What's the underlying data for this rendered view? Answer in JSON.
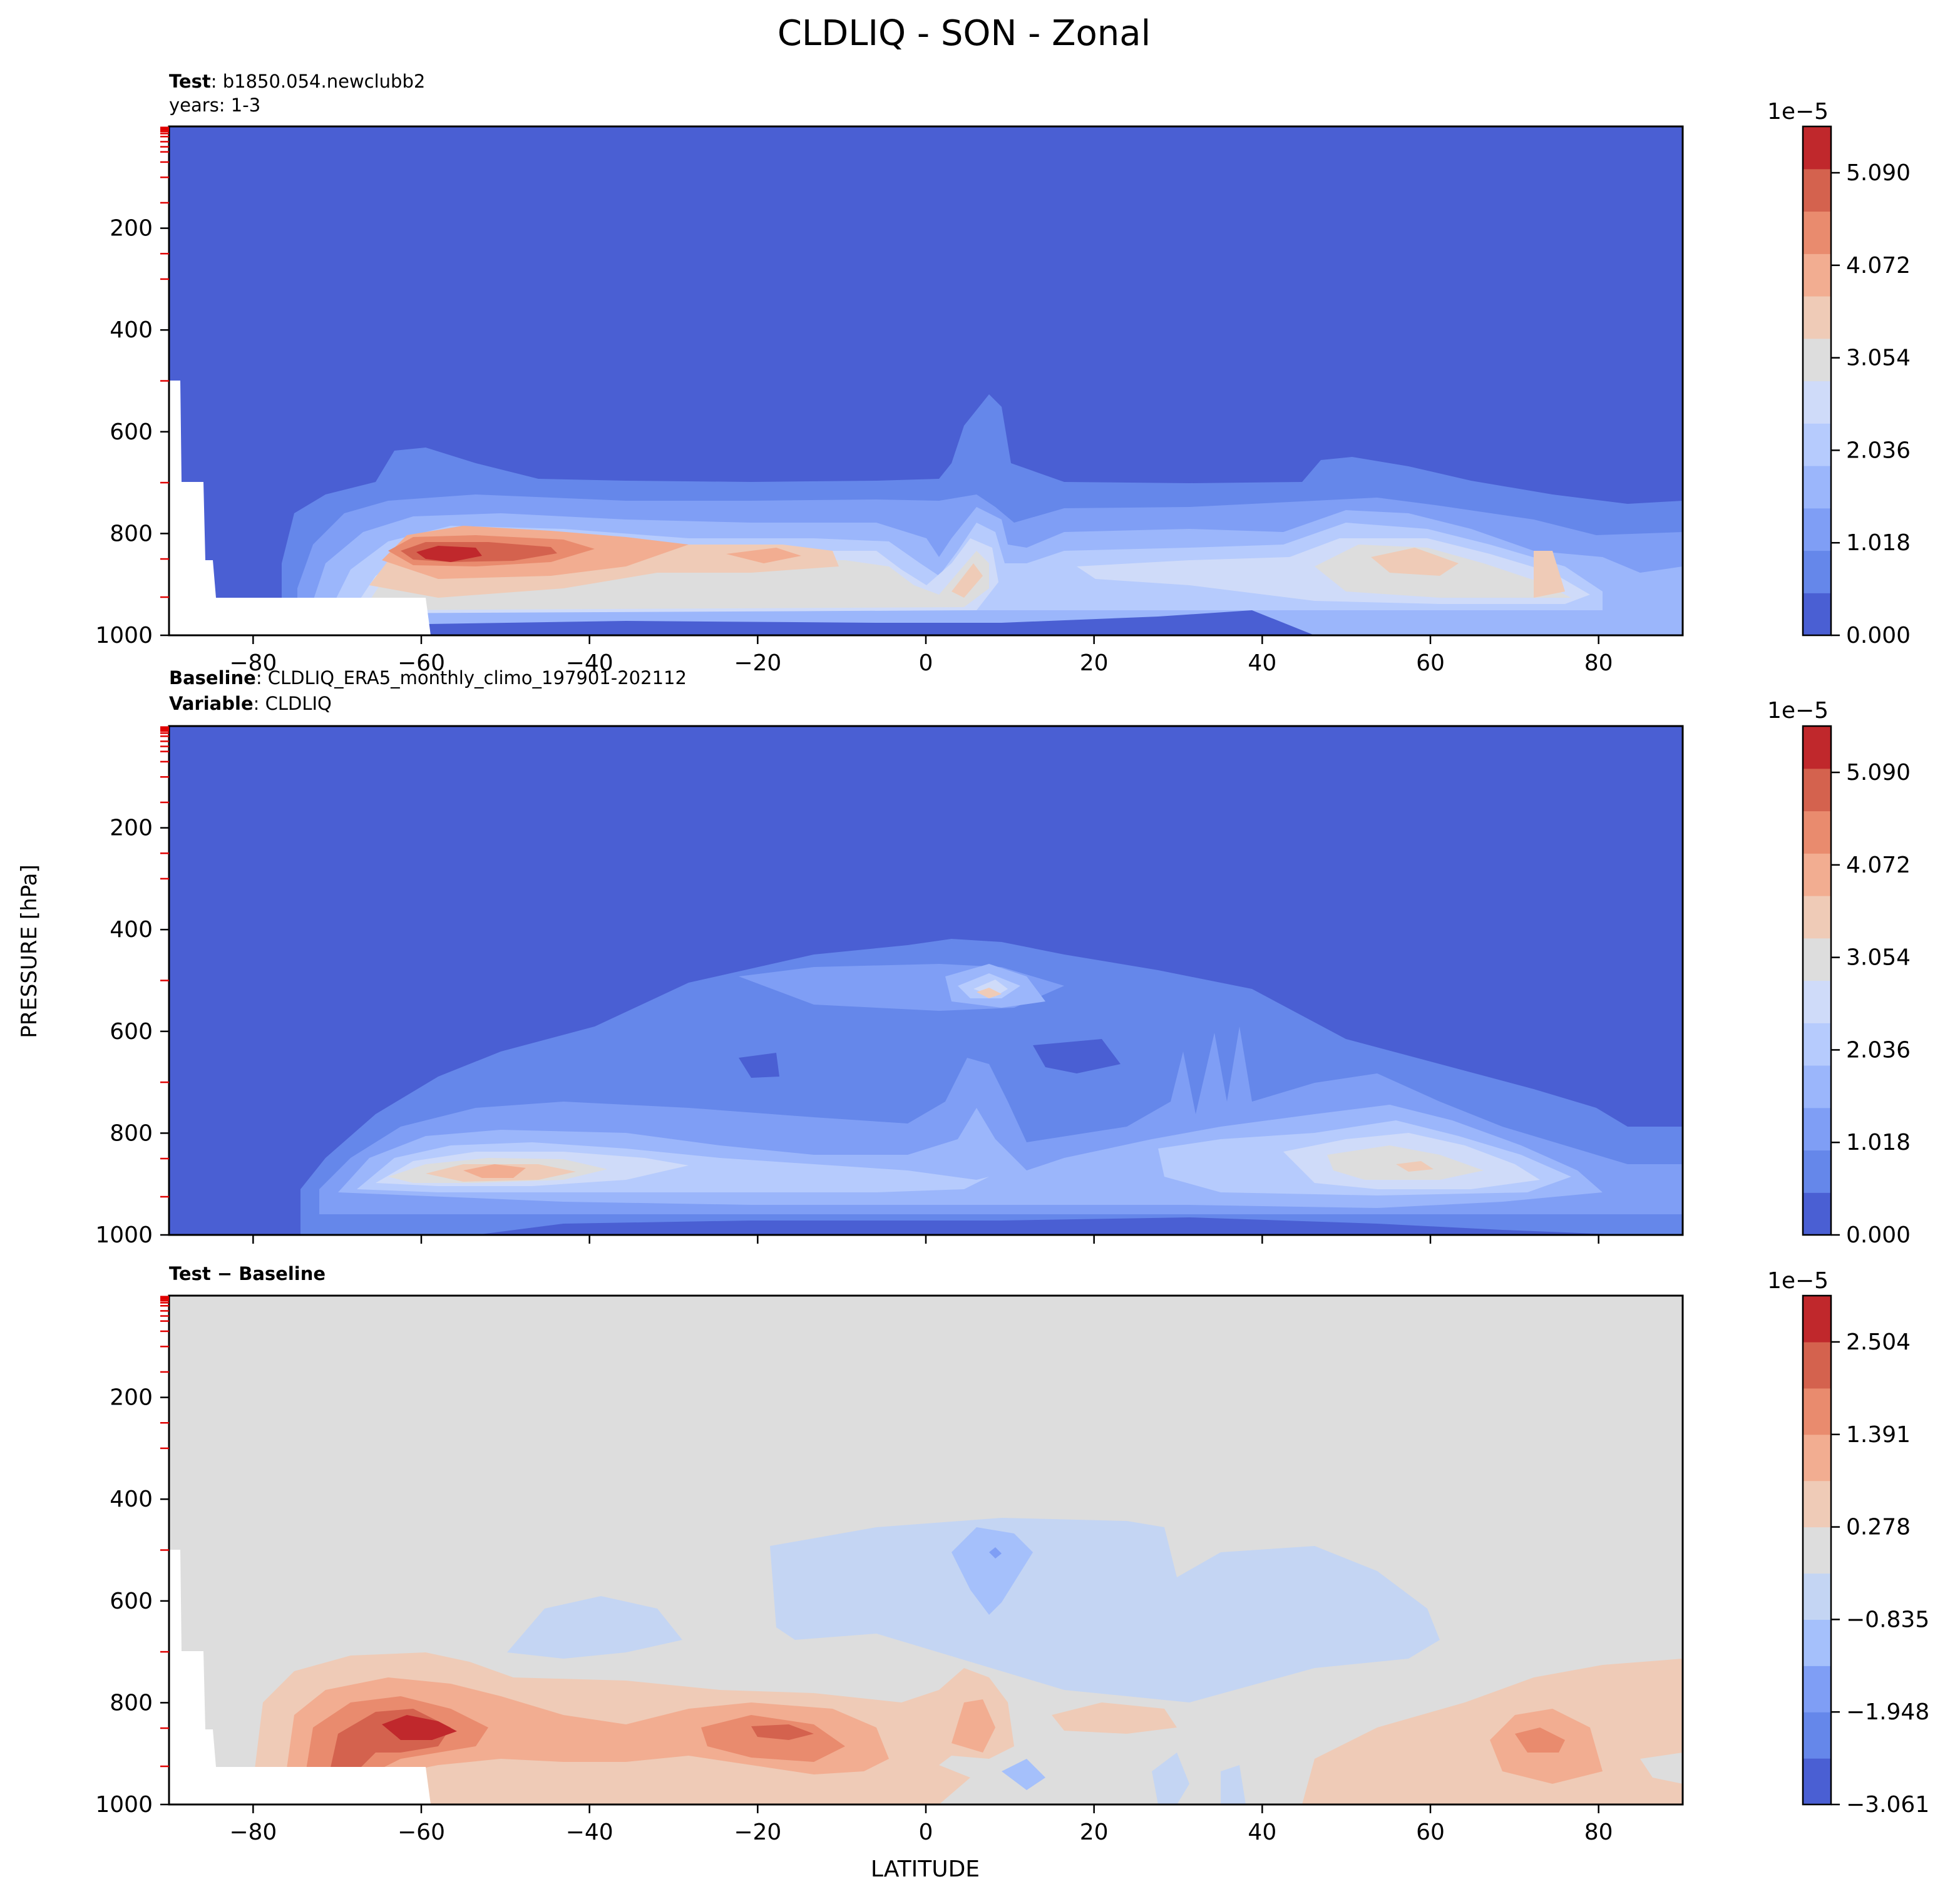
{
  "figure": {
    "title": "CLDLIQ - SON - Zonal",
    "ylabel": "PRESSURE [hPa]",
    "xlabel": "LATITUDE"
  },
  "chart_data": [
    {
      "type": "heatmap",
      "panel": "test",
      "header_line1_bold": "Test",
      "header_line1_text": ": b1850.054.newclubb2",
      "header_line2_text": "years: 1-3",
      "x": [
        -90,
        90
      ],
      "ylim": [
        1000,
        0
      ],
      "xticks": [
        -80,
        -60,
        -40,
        -20,
        0,
        20,
        40,
        60,
        80
      ],
      "xtick_labels": [
        "−80",
        "−60",
        "−40",
        "−20",
        "0",
        "20",
        "40",
        "60",
        "80"
      ],
      "yticks": [
        200,
        400,
        600,
        800,
        1000
      ],
      "ytick_labels": [
        "200",
        "400",
        "600",
        "800",
        "1000"
      ],
      "colorbar": {
        "multiplier": "1e−5",
        "range": [
          0.0,
          5.6
        ],
        "levels": 12,
        "ticks": [
          0.0,
          1.018,
          2.036,
          3.054,
          4.072,
          5.09
        ],
        "tick_labels": [
          "0.000",
          "1.018",
          "2.036",
          "3.054",
          "4.072",
          "5.090"
        ]
      }
    },
    {
      "type": "heatmap",
      "panel": "baseline",
      "header_line1_bold": "Baseline",
      "header_line1_text": ": CLDLIQ_ERA5_monthly_climo_197901-202112",
      "header_line2_bold": "Variable",
      "header_line2_text": ": CLDLIQ",
      "x": [
        -90,
        90
      ],
      "ylim": [
        1000,
        0
      ],
      "xticks": [
        -80,
        -60,
        -40,
        -20,
        0,
        20,
        40,
        60,
        80
      ],
      "yticks": [
        200,
        400,
        600,
        800,
        1000
      ],
      "ytick_labels": [
        "200",
        "400",
        "600",
        "800",
        "1000"
      ],
      "colorbar": {
        "multiplier": "1e−5",
        "range": [
          0.0,
          5.6
        ],
        "levels": 12,
        "ticks": [
          0.0,
          1.018,
          2.036,
          3.054,
          4.072,
          5.09
        ],
        "tick_labels": [
          "0.000",
          "1.018",
          "2.036",
          "3.054",
          "4.072",
          "5.090"
        ]
      }
    },
    {
      "type": "heatmap",
      "panel": "difference",
      "header_line1_bold": "Test − Baseline",
      "x": [
        -90,
        90
      ],
      "ylim": [
        1000,
        0
      ],
      "xticks": [
        -80,
        -60,
        -40,
        -20,
        0,
        20,
        40,
        60,
        80
      ],
      "xtick_labels": [
        "−80",
        "−60",
        "−40",
        "−20",
        "0",
        "20",
        "40",
        "60",
        "80"
      ],
      "yticks": [
        200,
        400,
        600,
        800,
        1000
      ],
      "ytick_labels": [
        "200",
        "400",
        "600",
        "800",
        "1000"
      ],
      "colorbar": {
        "multiplier": "1e−5",
        "range": [
          -3.061,
          3.061
        ],
        "levels": 11,
        "ticks": [
          -3.061,
          -1.948,
          -0.835,
          0.278,
          1.391,
          2.504
        ],
        "tick_labels": [
          "−3.061",
          "−1.948",
          "−0.835",
          "0.278",
          "1.391",
          "2.504"
        ]
      }
    }
  ]
}
